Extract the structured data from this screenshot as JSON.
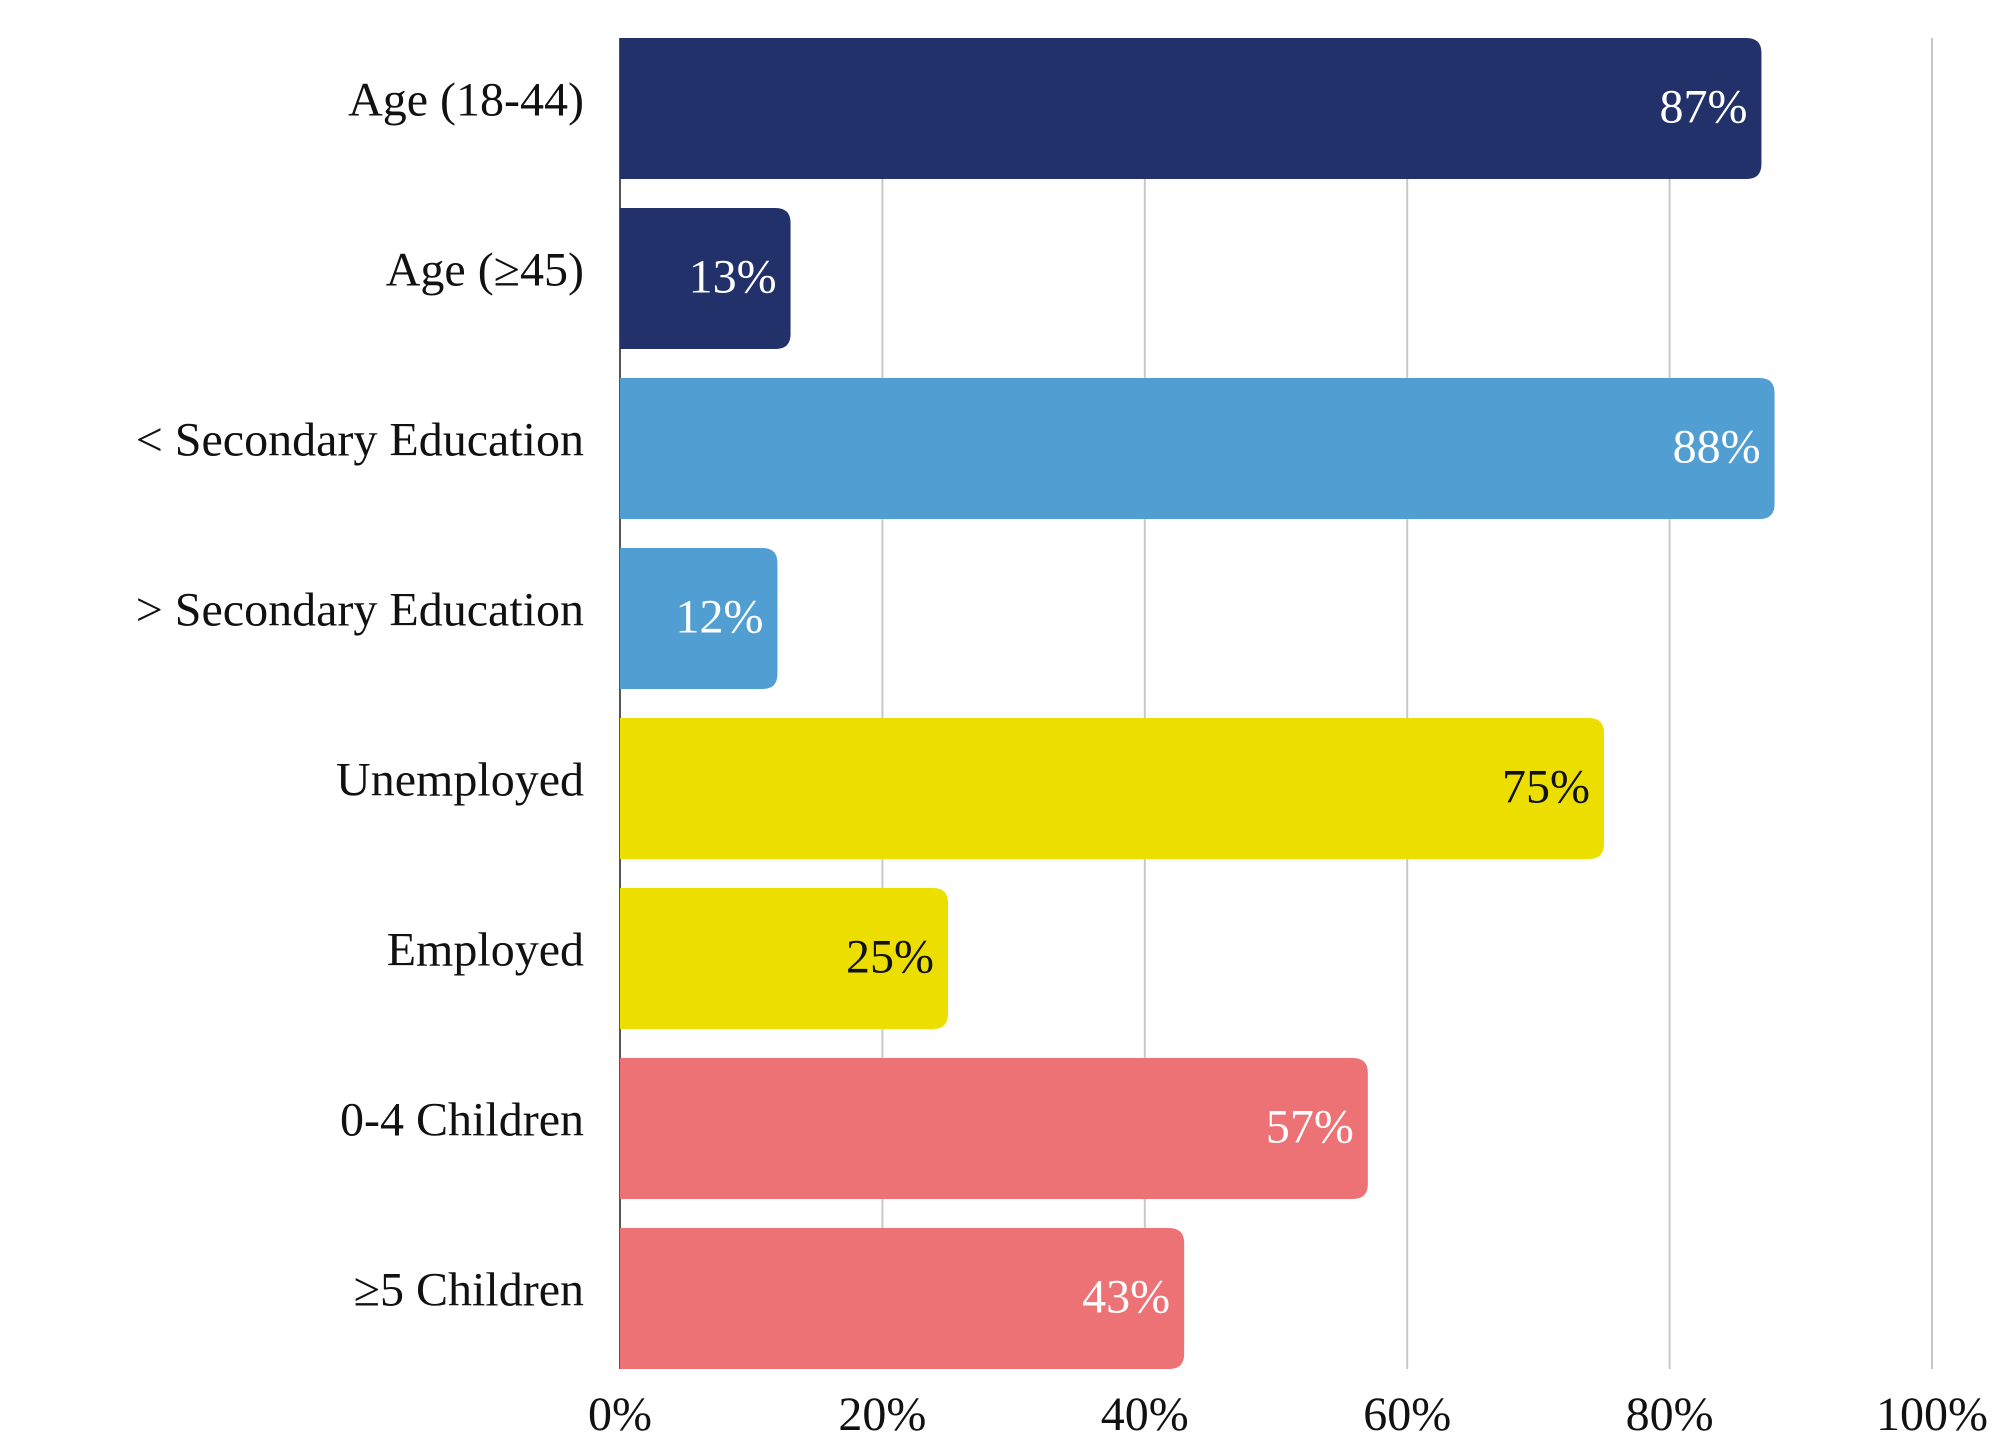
{
  "chart_data": {
    "type": "barh",
    "categories": [
      "Age (18-44)",
      "Age (≥45)",
      "< Secondary Education",
      "> Secondary Education",
      "Unemployed",
      "Employed",
      "0-4 Children",
      "≥5 Children"
    ],
    "values": [
      87,
      13,
      88,
      12,
      75,
      25,
      57,
      43
    ],
    "value_labels": [
      "87%",
      "13%",
      "88%",
      "12%",
      "75%",
      "25%",
      "57%",
      "43%"
    ],
    "colors": [
      "#22316a",
      "#22316a",
      "#519ed3",
      "#519ed3",
      "#ecdf00",
      "#ecdf00",
      "#ed7276",
      "#ed7276"
    ],
    "label_colors": [
      "#ffffff",
      "#ffffff",
      "#ffffff",
      "#ffffff",
      "#111111",
      "#111111",
      "#ffffff",
      "#ffffff"
    ],
    "xlim": [
      0,
      100
    ],
    "xticks": [
      {
        "value": 0,
        "label": "0%"
      },
      {
        "value": 20,
        "label": "20%"
      },
      {
        "value": 40,
        "label": "40%"
      },
      {
        "value": 60,
        "label": "60%"
      },
      {
        "value": 80,
        "label": "80%"
      },
      {
        "value": 100,
        "label": "100%"
      }
    ],
    "grid": true
  }
}
